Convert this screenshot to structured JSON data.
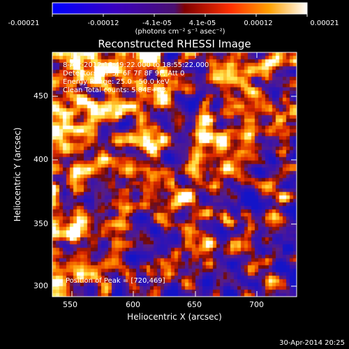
{
  "colorbar": {
    "tick_labels": [
      "-0.00021",
      "-0.00012",
      "-4.1e-05",
      "4.1e-05",
      "0.00012",
      "0.00021"
    ],
    "units_text": "(photons cm⁻² s⁻¹ asec⁻²)",
    "colors": [
      "#0000ff",
      "#3b00c8",
      "#6a1a9a",
      "#a01a00",
      "#ff4000",
      "#ff9a00",
      "#ffffff"
    ]
  },
  "plot": {
    "title": "Reconstructed RHESSI Image",
    "xlabel": "Heliocentric X (arcsec)",
    "ylabel": "Heliocentric Y (arcsec)",
    "x_ticks": [
      "550",
      "600",
      "650",
      "700"
    ],
    "y_ticks": [
      "300",
      "350",
      "400",
      "450"
    ]
  },
  "annotations": {
    "time_range": "8-Apr-2012 18:49:22.000 to 18:55:22.000",
    "detectors": "Detectors: 3F 5F 6F 7F 8F 9F, Att 0",
    "energy": "Energy Range: 25.0 - 50.0 keV",
    "clean": "Clean    Total counts: 5.84E+03",
    "peak": "Position of Peak = [720,469]"
  },
  "timestamp": "30-Apr-2014 20:25"
}
